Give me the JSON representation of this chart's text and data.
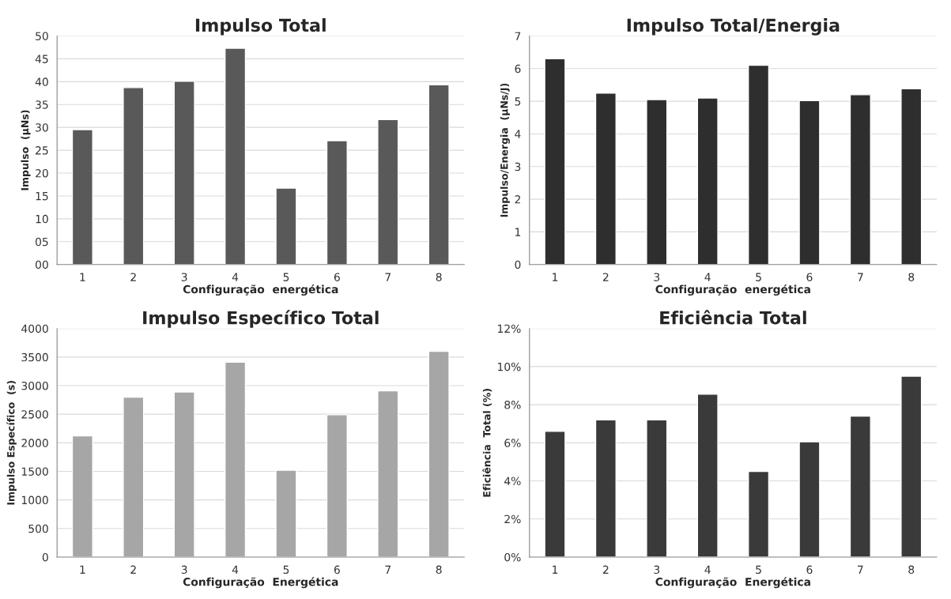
{
  "chart_data": [
    {
      "type": "bar",
      "title": "Impulso Total",
      "xlabel": "Configuração  energética",
      "ylabel": "Impulso  (µNs)",
      "categories": [
        "1",
        "2",
        "3",
        "4",
        "5",
        "6",
        "7",
        "8"
      ],
      "color": "#595959",
      "values": [
        29.5,
        38.7,
        40.1,
        47.3,
        16.7,
        27.1,
        31.7,
        39.3
      ],
      "ylim": [
        0,
        50
      ],
      "yticks": [
        {
          "value": 0,
          "label": "00"
        },
        {
          "value": 5,
          "label": "05"
        },
        10,
        15,
        20,
        25,
        30,
        35,
        40,
        45,
        50
      ],
      "grid": "y"
    },
    {
      "type": "bar",
      "title": "Impulso Total/Energia",
      "xlabel": "Configuração  energética",
      "ylabel": "Impulso/Energia  (µNs/J)",
      "categories": [
        "1",
        "2",
        "3",
        "4",
        "5",
        "6",
        "7",
        "8"
      ],
      "color": "#2e2e2e",
      "values": [
        6.3,
        5.25,
        5.05,
        5.1,
        6.1,
        5.02,
        5.2,
        5.38
      ],
      "ylim": [
        0,
        7
      ],
      "yticks": [
        0,
        1,
        2,
        3,
        4,
        5,
        6,
        7
      ],
      "grid": "y"
    },
    {
      "type": "bar",
      "title": "Impulso Específico Total",
      "xlabel": "Configuração  Energética",
      "ylabel": "Impulso Específico  (s)",
      "categories": [
        "1",
        "2",
        "3",
        "4",
        "5",
        "6",
        "7",
        "8"
      ],
      "color": "#a6a6a6",
      "values": [
        2120,
        2800,
        2890,
        3410,
        1520,
        2490,
        2910,
        3600
      ],
      "ylim": [
        0,
        4000
      ],
      "yticks": [
        0,
        500,
        1000,
        1500,
        2000,
        2500,
        3000,
        3500,
        4000
      ],
      "grid": "y"
    },
    {
      "type": "bar",
      "title": "Eficiência Total",
      "xlabel": "Configuração  Energética",
      "ylabel": "Eficiência  Total (%)",
      "categories": [
        "1",
        "2",
        "3",
        "4",
        "5",
        "6",
        "7",
        "8"
      ],
      "color": "#3a3a3a",
      "values": [
        6.6,
        7.2,
        7.2,
        8.55,
        4.5,
        6.05,
        7.4,
        9.5
      ],
      "ylim": [
        0,
        12
      ],
      "yticks": [
        {
          "value": 0,
          "label": "0%"
        },
        {
          "value": 2,
          "label": "2%"
        },
        {
          "value": 4,
          "label": "4%"
        },
        {
          "value": 6,
          "label": "6%"
        },
        {
          "value": 8,
          "label": "8%"
        },
        {
          "value": 10,
          "label": "10%"
        },
        {
          "value": 12,
          "label": "12%"
        }
      ],
      "grid": "y"
    }
  ]
}
